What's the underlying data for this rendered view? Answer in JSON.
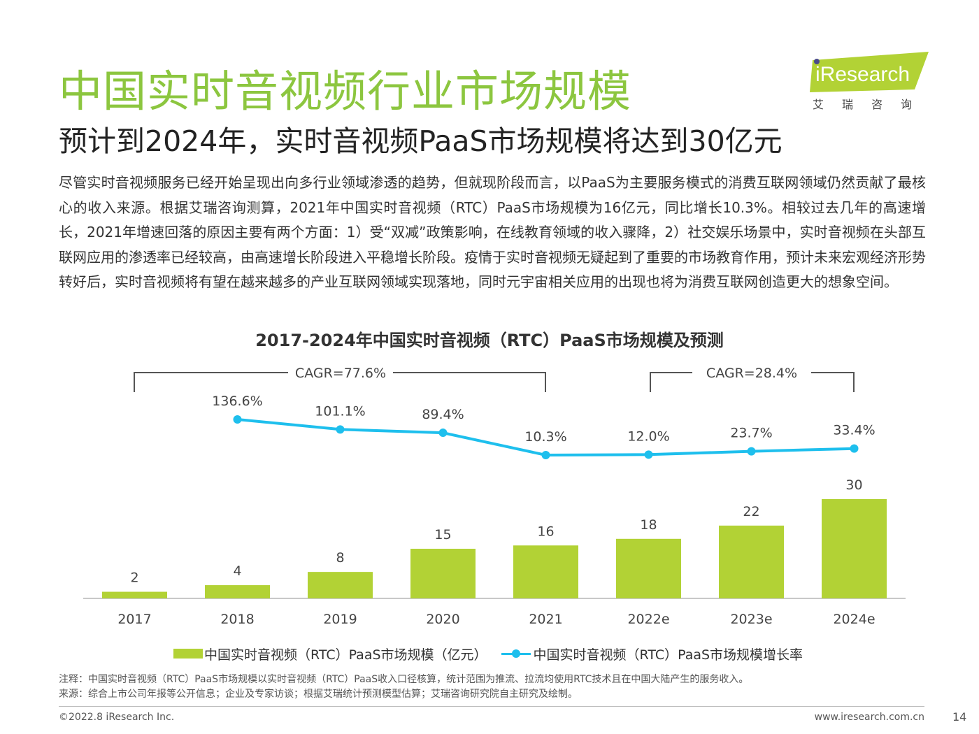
{
  "header": {
    "title": "中国实时音视频行业市场规模",
    "subtitle": "预计到2024年，实时音视频PaaS市场规模将达到30亿元"
  },
  "logo": {
    "word": "iResearch",
    "chinese": "艾瑞咨询",
    "color": "#b2d235"
  },
  "body_text": "尽管实时音视频服务已经开始呈现出向多行业领域渗透的趋势，但就现阶段而言，以PaaS为主要服务模式的消费互联网领域仍然贡献了最核心的收入来源。根据艾瑞咨询测算，2021年中国实时音视频（RTC）PaaS市场规模为16亿元，同比增长10.3%。相较过去几年的高速增长，2021年增速回落的原因主要有两个方面：1）受“双减”政策影响，在线教育领域的收入骤降，2）社交娱乐场景中，实时音视频在头部互联网应用的渗透率已经较高，由高速增长阶段进入平稳增长阶段。疫情于实时音视频无疑起到了重要的市场教育作用，预计未来宏观经济形势转好后，实时音视频将有望在越来越多的产业互联网领域实现落地，同时元宇宙相关应用的出现也将为消费互联网创造更大的想象空间。",
  "chart_data": {
    "type": "bar",
    "title": "2017-2024年中国实时音视频（RTC）PaaS市场规模及预测",
    "categories": [
      "2017",
      "2018",
      "2019",
      "2020",
      "2021",
      "2022e",
      "2023e",
      "2024e"
    ],
    "series": [
      {
        "name": "中国实时音视频（RTC）PaaS市场规模（亿元）",
        "type": "bar",
        "color": "#b2d235",
        "values": [
          2,
          4,
          8,
          15,
          16,
          18,
          22,
          30
        ],
        "labels": [
          "2",
          "4",
          "8",
          "15",
          "16",
          "18",
          "22",
          "30"
        ]
      },
      {
        "name": "中国实时音视频（RTC）PaaS市场规模增长率",
        "type": "line",
        "color": "#1ebfed",
        "values": [
          null,
          136.6,
          101.1,
          89.4,
          10.3,
          12.0,
          23.7,
          33.4
        ],
        "labels": [
          "",
          "136.6%",
          "101.1%",
          "89.4%",
          "10.3%",
          "12.0%",
          "23.7%",
          "33.4%"
        ]
      }
    ],
    "annotations": [
      {
        "text": "CAGR=77.6%",
        "from": "2017",
        "to": "2021"
      },
      {
        "text": "CAGR=28.4%",
        "from": "2022e",
        "to": "2024e"
      }
    ],
    "legend_position": "bottom",
    "grid": false
  },
  "notes": {
    "note": "注释：中国实时音视频（RTC）PaaS市场规模以实时音视频（RTC）PaaS收入口径核算，统计范围为推流、拉流均使用RTC技术且在中国大陆产生的服务收入。",
    "source": "来源：综合上市公司年报等公开信息；企业及专家访谈；根据艾瑞统计预测模型估算；艾瑞咨询研究院自主研究及绘制。"
  },
  "footer": {
    "copyright": "©2022.8 iResearch Inc.",
    "website": "www.iresearch.com.cn",
    "page": "14"
  }
}
